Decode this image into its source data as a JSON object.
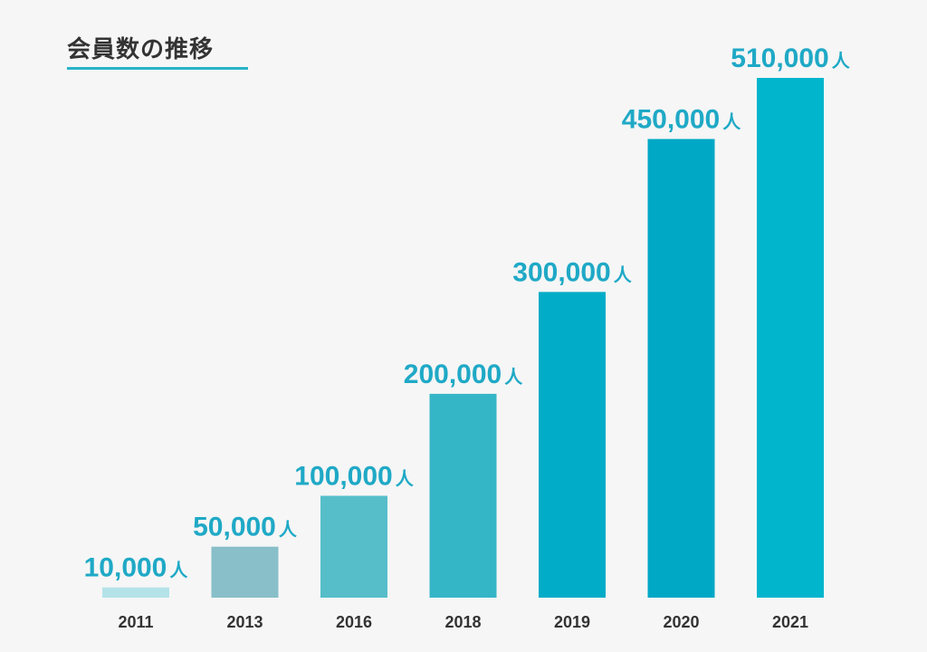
{
  "chart_data": {
    "type": "bar",
    "title": "会員数の推移",
    "categories": [
      "2011",
      "2013",
      "2016",
      "2018",
      "2019",
      "2020",
      "2021"
    ],
    "values": [
      10000,
      50000,
      100000,
      200000,
      300000,
      450000,
      510000
    ],
    "value_labels": [
      "10,000",
      "50,000",
      "100,000",
      "200,000",
      "300,000",
      "450,000",
      "510,000"
    ],
    "unit": "人",
    "xlabel": "",
    "ylabel": "",
    "ylim": [
      0,
      510000
    ],
    "grid": false,
    "legend": "none",
    "bar_colors": [
      "#b3e3e8",
      "#88bfc8",
      "#55bec9",
      "#35b6c7",
      "#00acc8",
      "#00a8c6",
      "#00b5cc"
    ],
    "label_color": "#1fa9c6",
    "axis_text_color": "#333333",
    "title_underline_color": "#29b3c9"
  }
}
